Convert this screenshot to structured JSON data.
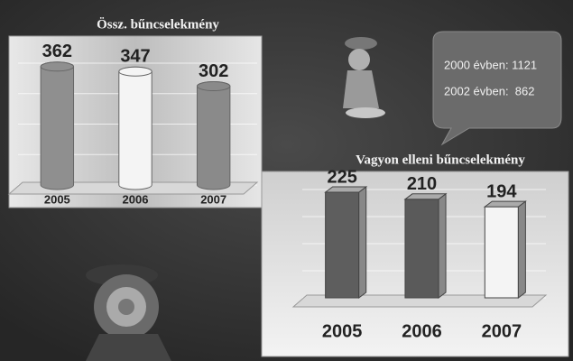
{
  "chart_data": [
    {
      "type": "bar",
      "title": "Össz. bűncselekmény",
      "categories": [
        "2005",
        "2006",
        "2007"
      ],
      "values": [
        362,
        347,
        302
      ],
      "colors": [
        "#8f8f8f",
        "#f4f4f4",
        "#8a8a8a"
      ],
      "ylim": [
        0,
        400
      ]
    },
    {
      "type": "bar",
      "title": "Vagyon elleni bűncselekmény",
      "categories": [
        "2005",
        "2006",
        "2007"
      ],
      "values": [
        225,
        210,
        194
      ],
      "colors": [
        "#5e5e5e",
        "#5a5a5a",
        "#f4f4f4"
      ],
      "ylim": [
        0,
        250
      ]
    }
  ],
  "callout": {
    "lines": [
      "2000 évben: 1121",
      "2002 évben:  862"
    ]
  }
}
